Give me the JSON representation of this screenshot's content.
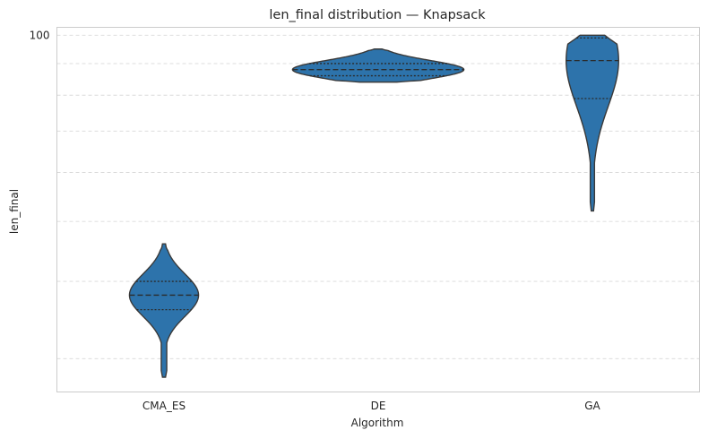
{
  "chart_data": {
    "type": "violin",
    "title": "len_final distribution — Knapsack",
    "xlabel": "Algorithm",
    "ylabel": "len_final",
    "categories": [
      "CMA_ES",
      "DE",
      "GA"
    ],
    "y_tick_labels": [
      "100"
    ],
    "y_ticks": [
      100
    ],
    "y_scale": "log",
    "ylim": [
      26.5,
      103
    ],
    "grid": "horizontal-dashed",
    "inner": "quartiles",
    "color": "#2d73ab",
    "series": [
      {
        "category": "CMA_ES",
        "min": 28,
        "q1": 36,
        "median": 38,
        "q3": 40,
        "max": 46
      },
      {
        "category": "DE",
        "min": 84,
        "q1": 86,
        "median": 88,
        "q3": 90,
        "max": 95
      },
      {
        "category": "GA",
        "min": 52,
        "q1": 79,
        "median": 91,
        "q3": 99,
        "max": 100
      }
    ]
  }
}
